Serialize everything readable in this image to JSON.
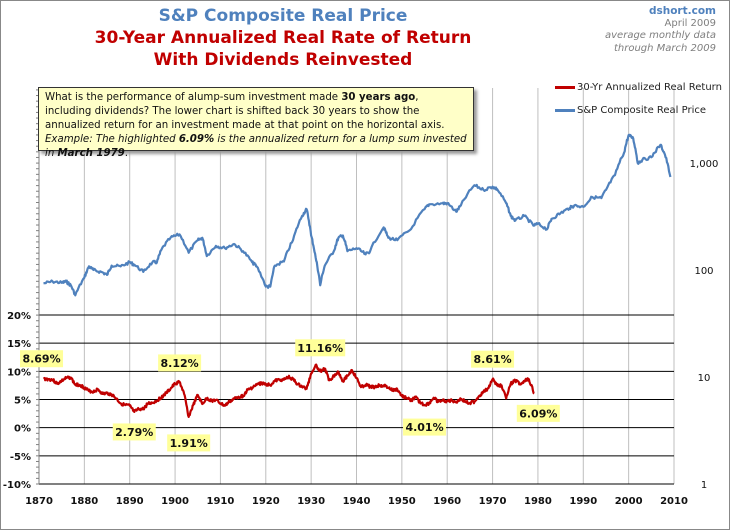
{
  "header": {
    "title_line1": "S&P Composite Real Price",
    "title_line2": "30-Year Annualized Real Rate of Return",
    "title_line3": "With Dividends Reinvested",
    "source_site": "dshort.com",
    "source_date": "April 2009",
    "source_note1": "average monthly data",
    "source_note2": "through March 2009"
  },
  "note": {
    "t1": "What is the performance of alump-sum investment made ",
    "b1": "30 years ago",
    "t2": ", including dividends? The lower chart is shifted back 30 years to show the annualized return for an investment made at that point on the horizontal axis. ",
    "i1": "Example: The highlighted ",
    "bi1": "6.09%",
    "i2": " is the annualized return for a lump sum invested in ",
    "bi2": "March 1979",
    "end": "."
  },
  "colors": {
    "return": "#c00000",
    "price": "#4f81bd",
    "highlight": "#ffff99"
  },
  "chart_data": {
    "type": "line",
    "title": "S&P Composite Real Price / 30-Year Annualized Real Rate of Return With Dividends Reinvested",
    "xlabel": "",
    "xlim": [
      1870,
      2010
    ],
    "x_ticks": [
      "1870",
      "1880",
      "1890",
      "1900",
      "1910",
      "1920",
      "1930",
      "1940",
      "1950",
      "1960",
      "1970",
      "1980",
      "1990",
      "2000",
      "2010"
    ],
    "left_axis": {
      "label": "30-Yr Annualized Real Return",
      "ylim": [
        -10,
        20
      ],
      "ticks": [
        "20%",
        "15%",
        "10%",
        "5%",
        "0%",
        "-5%",
        "-10%"
      ],
      "tick_values": [
        20,
        15,
        10,
        5,
        0,
        -5,
        -10
      ]
    },
    "right_axis": {
      "label": "S&P Composite Real Price",
      "scale": "log",
      "ylim": [
        1,
        10000
      ],
      "ticks": [
        "1,000",
        "100",
        "10",
        "1"
      ],
      "tick_values": [
        1000,
        100,
        10,
        1
      ]
    },
    "grid": true,
    "legend": {
      "placement": "top-right",
      "entries": [
        "30-Yr Annualized Real Return",
        "S&P Composite Real Price"
      ]
    },
    "series": [
      {
        "name": "30-Yr Annualized Real Return",
        "axis": "left",
        "x": [
          1871,
          1872,
          1873,
          1874,
          1875,
          1876,
          1877,
          1878,
          1879,
          1880,
          1881,
          1882,
          1883,
          1884,
          1885,
          1886,
          1887,
          1888,
          1889,
          1890,
          1891,
          1892,
          1893,
          1894,
          1895,
          1896,
          1897,
          1898,
          1899,
          1900,
          1901,
          1902,
          1903,
          1904,
          1905,
          1906,
          1907,
          1908,
          1909,
          1910,
          1911,
          1912,
          1913,
          1914,
          1915,
          1916,
          1917,
          1918,
          1919,
          1920,
          1921,
          1922,
          1923,
          1924,
          1925,
          1926,
          1927,
          1928,
          1929,
          1930,
          1931,
          1932,
          1933,
          1934,
          1935,
          1936,
          1937,
          1938,
          1939,
          1940,
          1941,
          1942,
          1943,
          1944,
          1945,
          1946,
          1947,
          1948,
          1949,
          1950,
          1951,
          1952,
          1953,
          1954,
          1955,
          1956,
          1957,
          1958,
          1959,
          1960,
          1961,
          1962,
          1963,
          1964,
          1965,
          1966,
          1967,
          1968,
          1969,
          1970,
          1971,
          1972,
          1973,
          1974,
          1975,
          1976,
          1977,
          1978,
          1979.2
        ],
        "values": [
          8.69,
          8.6,
          8.5,
          7.8,
          8.3,
          8.8,
          8.9,
          7.6,
          7.6,
          7.1,
          6.5,
          6.4,
          6.8,
          6.0,
          6.1,
          5.9,
          5.2,
          4.3,
          4.0,
          3.9,
          2.79,
          3.3,
          3.3,
          4.3,
          4.4,
          4.8,
          5.4,
          6.1,
          6.9,
          7.8,
          8.12,
          6.0,
          1.91,
          4.0,
          5.8,
          4.2,
          5.2,
          4.8,
          4.9,
          4.3,
          3.9,
          4.6,
          5.1,
          5.5,
          5.6,
          6.7,
          7.1,
          7.6,
          7.9,
          7.7,
          7.6,
          8.3,
          8.5,
          8.5,
          9.0,
          8.6,
          7.7,
          7.3,
          6.9,
          9.6,
          11.16,
          10.0,
          10.5,
          8.4,
          9.2,
          9.9,
          8.3,
          9.2,
          10.2,
          8.8,
          7.2,
          7.6,
          7.3,
          7.2,
          7.5,
          7.5,
          7.1,
          6.6,
          6.8,
          5.6,
          5.3,
          4.8,
          5.4,
          4.5,
          4.01,
          4.3,
          5.3,
          4.6,
          4.8,
          4.7,
          4.8,
          4.6,
          5.1,
          4.6,
          4.4,
          4.6,
          5.6,
          6.3,
          7.0,
          8.61,
          7.5,
          7.5,
          5.2,
          7.8,
          8.4,
          7.8,
          8.3,
          8.6,
          6.09
        ]
      },
      {
        "name": "S&P Composite Real Price",
        "axis": "right",
        "x": [
          1871,
          1873,
          1875,
          1876,
          1877,
          1878,
          1880,
          1881,
          1882,
          1884,
          1885,
          1886,
          1888,
          1890,
          1891,
          1893,
          1895,
          1896,
          1897,
          1899,
          1901,
          1903,
          1905,
          1906,
          1907,
          1909,
          1911,
          1913,
          1915,
          1917,
          1918,
          1920,
          1921,
          1922,
          1924,
          1926,
          1928,
          1929,
          1930,
          1931,
          1932,
          1933,
          1935,
          1936,
          1937,
          1938,
          1940,
          1942,
          1943,
          1946,
          1947,
          1949,
          1952,
          1955,
          1956,
          1959,
          1960,
          1962,
          1963,
          1966,
          1968,
          1970,
          1971,
          1973,
          1974,
          1975,
          1977,
          1979,
          1980,
          1982,
          1983,
          1985,
          1987,
          1988,
          1990,
          1992,
          1994,
          1995,
          1997,
          1999,
          2000,
          2001,
          2002,
          2003,
          2005,
          2007,
          2008,
          2009.2
        ],
        "values": [
          75,
          78,
          76,
          78,
          72,
          58,
          85,
          108,
          100,
          95,
          90,
          110,
          108,
          118,
          112,
          96,
          118,
          118,
          155,
          200,
          215,
          145,
          190,
          200,
          135,
          168,
          160,
          175,
          150,
          118,
          108,
          70,
          70,
          110,
          120,
          190,
          320,
          370,
          210,
          130,
          72,
          110,
          150,
          200,
          210,
          150,
          160,
          140,
          150,
          250,
          200,
          190,
          240,
          370,
          410,
          420,
          420,
          350,
          400,
          620,
          560,
          600,
          570,
          420,
          320,
          290,
          320,
          260,
          270,
          240,
          300,
          340,
          380,
          400,
          390,
          480,
          470,
          560,
          770,
          1250,
          1820,
          1700,
          1000,
          1070,
          1130,
          1480,
          1200,
          740
        ]
      }
    ],
    "annotations": [
      {
        "text": "8.69%",
        "x": 1871,
        "value": 8.69
      },
      {
        "text": "8.12%",
        "x": 1901,
        "value": 8.12
      },
      {
        "text": "2.79%",
        "x": 1891,
        "value": 2.79
      },
      {
        "text": "1.91%",
        "x": 1903,
        "value": 1.91
      },
      {
        "text": "11.16%",
        "x": 1932,
        "value": 11.16
      },
      {
        "text": "4.01%",
        "x": 1955,
        "value": 4.01
      },
      {
        "text": "8.61%",
        "x": 1970,
        "value": 8.61
      },
      {
        "text": "6.09%",
        "x": 1979.2,
        "value": 6.09
      }
    ]
  }
}
